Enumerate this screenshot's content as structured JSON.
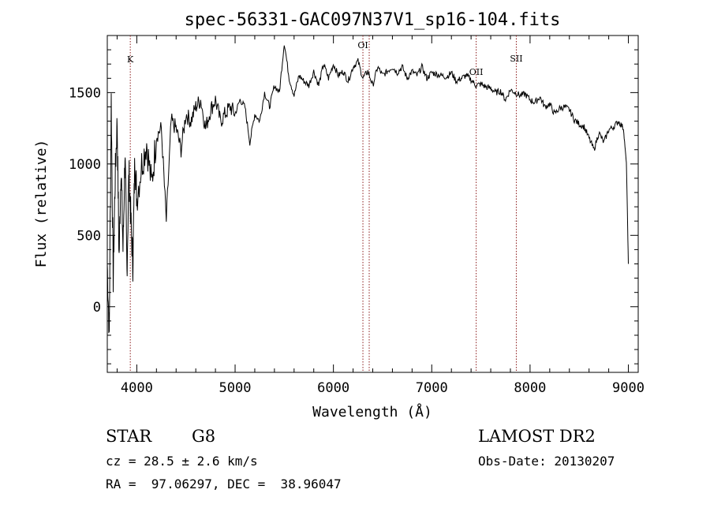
{
  "chart_data": {
    "type": "line",
    "title": "spec-56331-GAC097N37V1_sp16-104.fits",
    "xlabel": "Wavelength (Å)",
    "ylabel": "Flux (relative)",
    "xlim": [
      3700,
      9100
    ],
    "ylim": [
      -460,
      1900
    ],
    "x_ticks": [
      4000,
      5000,
      6000,
      7000,
      8000,
      9000
    ],
    "y_ticks": [
      0,
      500,
      1000,
      1500
    ],
    "grid": false,
    "series": [
      {
        "x": [
          3700,
          3720,
          3740,
          3760,
          3780,
          3800,
          3820,
          3840,
          3860,
          3880,
          3900,
          3920,
          3940,
          3960,
          3980,
          4000,
          4050,
          4100,
          4150,
          4200,
          4250,
          4300,
          4350,
          4400,
          4450,
          4500,
          4550,
          4600,
          4650,
          4700,
          4750,
          4800,
          4850,
          4900,
          4950,
          5000,
          5050,
          5100,
          5150,
          5200,
          5250,
          5300,
          5350,
          5400,
          5450,
          5500,
          5550,
          5600,
          5650,
          5700,
          5750,
          5800,
          5850,
          5900,
          5950,
          6000,
          6050,
          6100,
          6150,
          6200,
          6250,
          6300,
          6350,
          6400,
          6450,
          6500,
          6550,
          6600,
          6650,
          6700,
          6750,
          6800,
          6850,
          6900,
          6950,
          7000,
          7050,
          7100,
          7150,
          7200,
          7250,
          7300,
          7350,
          7400,
          7450,
          7500,
          7550,
          7600,
          7650,
          7700,
          7750,
          7800,
          7850,
          7900,
          7950,
          8000,
          8050,
          8100,
          8150,
          8200,
          8250,
          8300,
          8350,
          8400,
          8450,
          8500,
          8550,
          8600,
          8650,
          8700,
          8750,
          8800,
          8850,
          8900,
          8950,
          8980,
          9000
        ],
        "y": [
          300,
          -200,
          1450,
          200,
          900,
          1300,
          350,
          1000,
          400,
          1080,
          250,
          950,
          600,
          300,
          1050,
          760,
          1000,
          1150,
          850,
          1200,
          1250,
          600,
          1300,
          1250,
          1100,
          1350,
          1300,
          1400,
          1450,
          1250,
          1380,
          1450,
          1300,
          1350,
          1400,
          1350,
          1450,
          1400,
          1150,
          1350,
          1300,
          1500,
          1400,
          1550,
          1500,
          1850,
          1600,
          1480,
          1620,
          1580,
          1550,
          1650,
          1550,
          1700,
          1600,
          1700,
          1620,
          1650,
          1580,
          1680,
          1720,
          1600,
          1650,
          1550,
          1680,
          1620,
          1650,
          1680,
          1640,
          1680,
          1600,
          1650,
          1620,
          1680,
          1600,
          1640,
          1630,
          1620,
          1610,
          1640,
          1580,
          1600,
          1620,
          1590,
          1550,
          1560,
          1540,
          1530,
          1500,
          1510,
          1450,
          1520,
          1500,
          1480,
          1490,
          1450,
          1430,
          1470,
          1400,
          1420,
          1350,
          1390,
          1400,
          1380,
          1310,
          1280,
          1260,
          1180,
          1100,
          1220,
          1150,
          1240,
          1260,
          1300,
          1250,
          1000,
          300
        ]
      }
    ],
    "line_markers": [
      {
        "label": "K",
        "x": 3934
      },
      {
        "label": "OI",
        "x": 6300
      },
      {
        "label": "",
        "x": 6364
      },
      {
        "label": "OII",
        "x": 7452
      },
      {
        "label": "SII",
        "x": 7860
      }
    ],
    "annotations": {
      "class": "STAR",
      "subclass": "G8",
      "source": "LAMOST DR2",
      "cz": "cz = 28.5 ± 2.6 km/s",
      "obs_date": "Obs-Date: 20130207",
      "coords": "RA =  97.06297, DEC =  38.96047"
    }
  }
}
